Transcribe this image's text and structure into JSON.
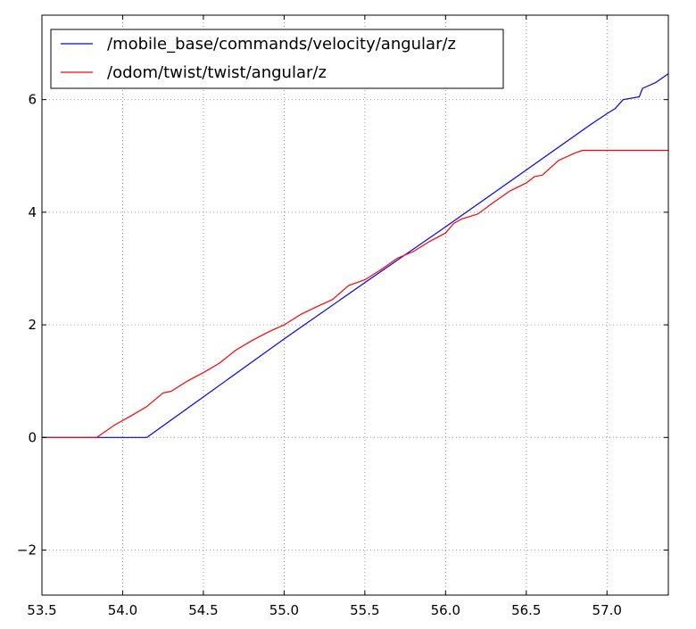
{
  "chart_data": {
    "type": "line",
    "title": "",
    "xlabel": "",
    "ylabel": "",
    "xlim": [
      53.5,
      57.38
    ],
    "ylim": [
      -2.8,
      7.5
    ],
    "grid": true,
    "grid_style": "dotted",
    "legend_position": "top-left",
    "x_ticks": [
      53.5,
      54.0,
      54.5,
      55.0,
      55.5,
      56.0,
      56.5,
      57.0
    ],
    "x_tick_labels": [
      "53.5",
      "54.0",
      "54.5",
      "55.0",
      "55.5",
      "56.0",
      "56.5",
      "57.0"
    ],
    "y_ticks": [
      -2,
      0,
      2,
      4,
      6
    ],
    "y_tick_labels": [
      "−2",
      "0",
      "2",
      "4",
      "6"
    ],
    "series": [
      {
        "name": "/mobile_base/commands/velocity/angular/z",
        "color": "#0000ff",
        "points": [
          [
            53.5,
            0.0
          ],
          [
            54.15,
            0.0
          ],
          [
            54.5,
            0.72
          ],
          [
            55.0,
            1.75
          ],
          [
            55.5,
            2.75
          ],
          [
            56.0,
            3.74
          ],
          [
            56.5,
            4.75
          ],
          [
            56.9,
            5.56
          ],
          [
            57.0,
            5.75
          ],
          [
            57.05,
            5.84
          ],
          [
            57.1,
            6.0
          ],
          [
            57.2,
            6.05
          ],
          [
            57.22,
            6.2
          ],
          [
            57.3,
            6.3
          ],
          [
            57.38,
            6.46
          ]
        ]
      },
      {
        "name": "/odom/twist/twist/angular/z",
        "color": "#ff0000",
        "points": [
          [
            53.5,
            0.0
          ],
          [
            53.84,
            0.0
          ],
          [
            53.95,
            0.22
          ],
          [
            54.05,
            0.38
          ],
          [
            54.15,
            0.55
          ],
          [
            54.25,
            0.79
          ],
          [
            54.3,
            0.82
          ],
          [
            54.4,
            1.0
          ],
          [
            54.5,
            1.15
          ],
          [
            54.6,
            1.32
          ],
          [
            54.7,
            1.55
          ],
          [
            54.8,
            1.72
          ],
          [
            54.9,
            1.87
          ],
          [
            55.0,
            2.0
          ],
          [
            55.1,
            2.18
          ],
          [
            55.2,
            2.32
          ],
          [
            55.3,
            2.45
          ],
          [
            55.4,
            2.7
          ],
          [
            55.5,
            2.8
          ],
          [
            55.6,
            2.98
          ],
          [
            55.7,
            3.18
          ],
          [
            55.8,
            3.3
          ],
          [
            55.9,
            3.48
          ],
          [
            56.0,
            3.63
          ],
          [
            56.05,
            3.8
          ],
          [
            56.1,
            3.88
          ],
          [
            56.2,
            3.97
          ],
          [
            56.3,
            4.18
          ],
          [
            56.4,
            4.38
          ],
          [
            56.5,
            4.52
          ],
          [
            56.55,
            4.63
          ],
          [
            56.6,
            4.66
          ],
          [
            56.7,
            4.92
          ],
          [
            56.8,
            5.05
          ],
          [
            56.85,
            5.1
          ],
          [
            57.38,
            5.1
          ]
        ]
      }
    ]
  }
}
